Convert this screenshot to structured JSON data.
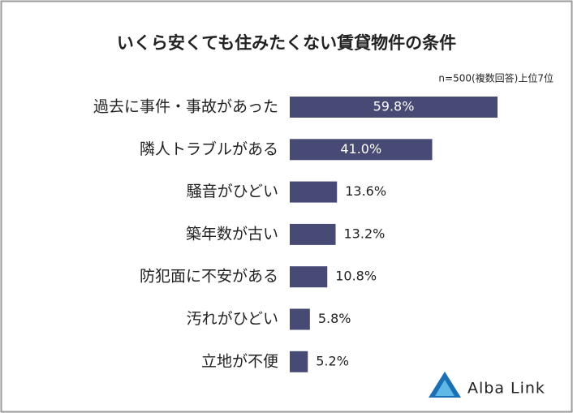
{
  "chart_data": {
    "type": "hbar",
    "title": "いくら安くても住みたくない賃貸物件の条件",
    "subtitle": "n=500(複数回答)上位7位",
    "categories": [
      "過去に事件・事故があった",
      "隣人トラブルがある",
      "騒音がひどい",
      "築年数が古い",
      "防犯面に不安がある",
      "汚れがひどい",
      "立地が不便"
    ],
    "values": [
      59.8,
      41.0,
      13.6,
      13.2,
      10.8,
      5.8,
      5.2
    ],
    "value_labels": [
      "59.8%",
      "41.0%",
      "13.6%",
      "13.2%",
      "10.8%",
      "5.8%",
      "5.2%"
    ],
    "color": "#474a75"
  },
  "brand": "Alba Link"
}
